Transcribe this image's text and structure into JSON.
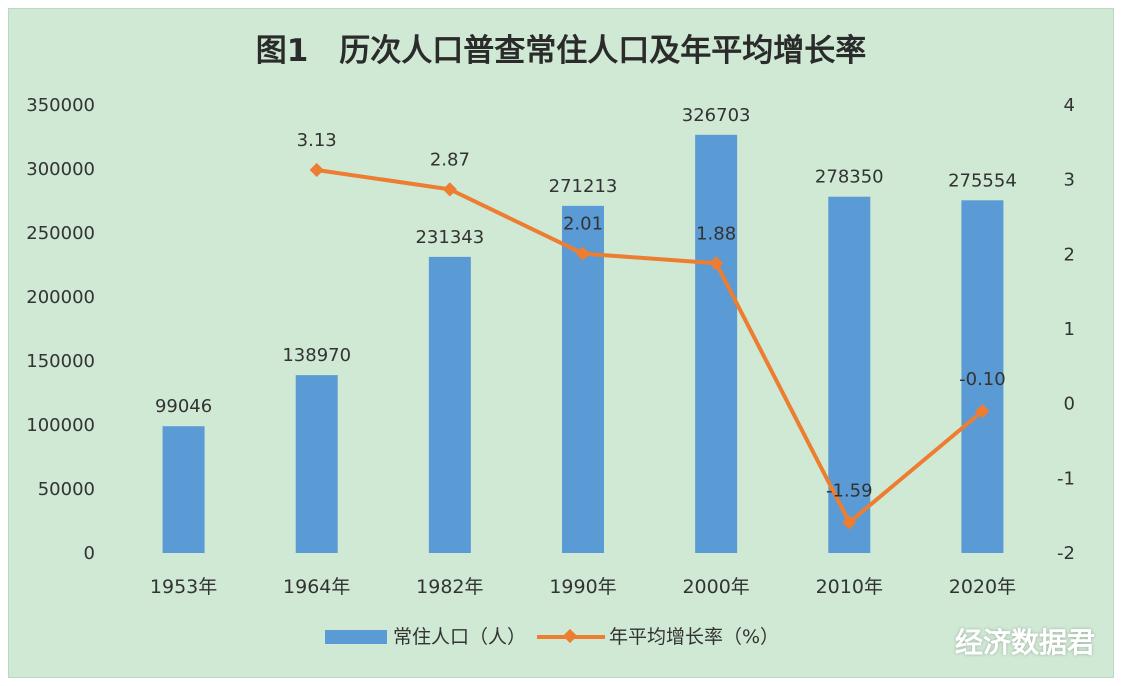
{
  "chart_data": {
    "type": "bar",
    "title": "图1　历次人口普查常住人口及年平均增长率",
    "categories": [
      "1953年",
      "1964年",
      "1982年",
      "1990年",
      "2000年",
      "2010年",
      "2020年"
    ],
    "series": [
      {
        "name": "常住人口（人）",
        "type": "bar",
        "axis": "left",
        "color": "#5b9bd5",
        "values": [
          99046,
          138970,
          231343,
          271213,
          326703,
          278350,
          275554
        ],
        "labels": [
          "99046",
          "138970",
          "231343",
          "271213",
          "326703",
          "278350",
          "275554"
        ]
      },
      {
        "name": "年平均增长率（%）",
        "type": "line",
        "axis": "right",
        "color": "#ed7d31",
        "values": [
          null,
          3.13,
          2.87,
          2.01,
          1.88,
          -1.59,
          -0.1
        ],
        "labels": [
          "",
          "3.13",
          "2.87",
          "2.01",
          "1.88",
          "-1.59",
          "-0.10"
        ]
      }
    ],
    "left_axis": {
      "ylim": [
        0,
        350000
      ],
      "ticks": [
        0,
        50000,
        100000,
        150000,
        200000,
        250000,
        300000,
        350000
      ],
      "tick_labels": [
        "0",
        "50000",
        "100000",
        "150000",
        "200000",
        "250000",
        "300000",
        "350000"
      ]
    },
    "right_axis": {
      "ylim": [
        -2,
        4
      ],
      "ticks": [
        -2,
        -1,
        0,
        1,
        2,
        3,
        4
      ],
      "tick_labels": [
        "-2",
        "-1",
        "0",
        "1",
        "2",
        "3",
        "4"
      ]
    },
    "grid": false,
    "legend_position": "bottom",
    "background_color": "#cfe9d4"
  },
  "watermark": "经济数据君"
}
